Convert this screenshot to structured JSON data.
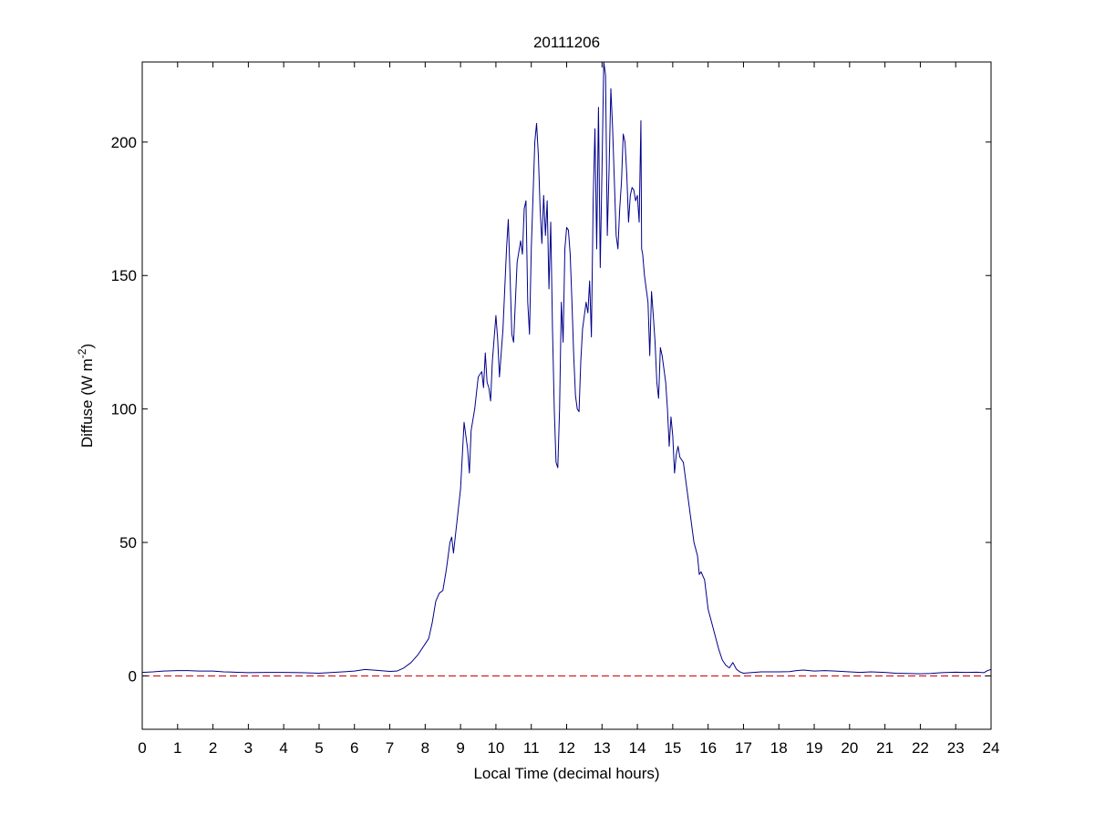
{
  "chart_data": {
    "type": "line",
    "title": "20111206",
    "xlabel": "Local Time (decimal hours)",
    "ylabel_parts": {
      "main": "Diffuse (W m",
      "exponent": "-2",
      "close": ")"
    },
    "xlim": [
      0,
      24
    ],
    "ylim": [
      -20,
      230
    ],
    "xticks": [
      0,
      1,
      2,
      3,
      4,
      5,
      6,
      7,
      8,
      9,
      10,
      11,
      12,
      13,
      14,
      15,
      16,
      17,
      18,
      19,
      20,
      21,
      22,
      23,
      24
    ],
    "yticks": [
      0,
      50,
      100,
      150,
      200
    ],
    "grid": false,
    "series": [
      {
        "color": "#00008b",
        "style": "solid",
        "points": [
          [
            0.0,
            1.3
          ],
          [
            0.3,
            1.5
          ],
          [
            0.6,
            1.8
          ],
          [
            1.0,
            2.0
          ],
          [
            1.3,
            2.0
          ],
          [
            1.6,
            1.8
          ],
          [
            2.0,
            1.8
          ],
          [
            2.3,
            1.5
          ],
          [
            2.6,
            1.4
          ],
          [
            3.0,
            1.2
          ],
          [
            3.5,
            1.3
          ],
          [
            4.0,
            1.3
          ],
          [
            4.5,
            1.2
          ],
          [
            5.0,
            1.0
          ],
          [
            5.5,
            1.4
          ],
          [
            6.0,
            1.8
          ],
          [
            6.3,
            2.4
          ],
          [
            6.6,
            2.1
          ],
          [
            7.0,
            1.7
          ],
          [
            7.2,
            1.8
          ],
          [
            7.4,
            3.0
          ],
          [
            7.6,
            5.0
          ],
          [
            7.8,
            8.0
          ],
          [
            8.0,
            12.0
          ],
          [
            8.1,
            14.0
          ],
          [
            8.2,
            20.0
          ],
          [
            8.3,
            28.0
          ],
          [
            8.4,
            31.0
          ],
          [
            8.5,
            32.0
          ],
          [
            8.6,
            40.0
          ],
          [
            8.7,
            50.0
          ],
          [
            8.75,
            52.0
          ],
          [
            8.8,
            46.0
          ],
          [
            8.9,
            58.0
          ],
          [
            9.0,
            70.0
          ],
          [
            9.1,
            95.0
          ],
          [
            9.2,
            85.0
          ],
          [
            9.25,
            76.0
          ],
          [
            9.3,
            92.0
          ],
          [
            9.4,
            100.0
          ],
          [
            9.5,
            112.0
          ],
          [
            9.6,
            114.0
          ],
          [
            9.65,
            108.0
          ],
          [
            9.7,
            121.0
          ],
          [
            9.75,
            110.0
          ],
          [
            9.8,
            108.0
          ],
          [
            9.85,
            103.0
          ],
          [
            9.9,
            118.0
          ],
          [
            10.0,
            135.0
          ],
          [
            10.05,
            126.0
          ],
          [
            10.1,
            112.0
          ],
          [
            10.2,
            130.0
          ],
          [
            10.3,
            160.0
          ],
          [
            10.35,
            171.0
          ],
          [
            10.4,
            150.0
          ],
          [
            10.45,
            128.0
          ],
          [
            10.5,
            125.0
          ],
          [
            10.6,
            155.0
          ],
          [
            10.7,
            163.0
          ],
          [
            10.75,
            158.0
          ],
          [
            10.8,
            175.0
          ],
          [
            10.85,
            178.0
          ],
          [
            10.9,
            140.0
          ],
          [
            10.95,
            128.0
          ],
          [
            11.0,
            160.0
          ],
          [
            11.1,
            200.0
          ],
          [
            11.15,
            207.0
          ],
          [
            11.2,
            195.0
          ],
          [
            11.25,
            175.0
          ],
          [
            11.3,
            162.0
          ],
          [
            11.35,
            180.0
          ],
          [
            11.4,
            165.0
          ],
          [
            11.45,
            178.0
          ],
          [
            11.5,
            145.0
          ],
          [
            11.55,
            170.0
          ],
          [
            11.6,
            130.0
          ],
          [
            11.65,
            100.0
          ],
          [
            11.7,
            80.0
          ],
          [
            11.75,
            78.0
          ],
          [
            11.8,
            100.0
          ],
          [
            11.85,
            140.0
          ],
          [
            11.9,
            125.0
          ],
          [
            11.95,
            160.0
          ],
          [
            12.0,
            168.0
          ],
          [
            12.05,
            167.0
          ],
          [
            12.1,
            158.0
          ],
          [
            12.15,
            140.0
          ],
          [
            12.2,
            120.0
          ],
          [
            12.25,
            105.0
          ],
          [
            12.3,
            100.0
          ],
          [
            12.35,
            99.0
          ],
          [
            12.4,
            118.0
          ],
          [
            12.45,
            130.0
          ],
          [
            12.5,
            135.0
          ],
          [
            12.55,
            140.0
          ],
          [
            12.6,
            136.0
          ],
          [
            12.65,
            148.0
          ],
          [
            12.7,
            127.0
          ],
          [
            12.75,
            178.0
          ],
          [
            12.8,
            205.0
          ],
          [
            12.85,
            160.0
          ],
          [
            12.9,
            213.0
          ],
          [
            12.95,
            153.0
          ],
          [
            13.0,
            190.0
          ],
          [
            13.05,
            230.0
          ],
          [
            13.1,
            225.0
          ],
          [
            13.15,
            165.0
          ],
          [
            13.2,
            190.0
          ],
          [
            13.25,
            220.0
          ],
          [
            13.3,
            205.0
          ],
          [
            13.35,
            185.0
          ],
          [
            13.4,
            165.0
          ],
          [
            13.45,
            160.0
          ],
          [
            13.5,
            175.0
          ],
          [
            13.55,
            185.0
          ],
          [
            13.6,
            203.0
          ],
          [
            13.65,
            200.0
          ],
          [
            13.7,
            188.0
          ],
          [
            13.75,
            170.0
          ],
          [
            13.8,
            180.0
          ],
          [
            13.85,
            183.0
          ],
          [
            13.9,
            182.0
          ],
          [
            13.95,
            178.0
          ],
          [
            14.0,
            180.0
          ],
          [
            14.05,
            170.0
          ],
          [
            14.1,
            208.0
          ],
          [
            14.12,
            160.0
          ],
          [
            14.15,
            158.0
          ],
          [
            14.2,
            150.0
          ],
          [
            14.3,
            140.0
          ],
          [
            14.35,
            120.0
          ],
          [
            14.4,
            144.0
          ],
          [
            14.45,
            135.0
          ],
          [
            14.5,
            125.0
          ],
          [
            14.55,
            110.0
          ],
          [
            14.6,
            104.0
          ],
          [
            14.65,
            123.0
          ],
          [
            14.7,
            120.0
          ],
          [
            14.75,
            115.0
          ],
          [
            14.8,
            110.0
          ],
          [
            14.85,
            100.0
          ],
          [
            14.9,
            86.0
          ],
          [
            14.95,
            97.0
          ],
          [
            15.0,
            90.0
          ],
          [
            15.05,
            76.0
          ],
          [
            15.1,
            83.0
          ],
          [
            15.15,
            86.0
          ],
          [
            15.2,
            82.0
          ],
          [
            15.3,
            80.0
          ],
          [
            15.4,
            70.0
          ],
          [
            15.5,
            60.0
          ],
          [
            15.6,
            50.0
          ],
          [
            15.7,
            45.0
          ],
          [
            15.75,
            38.0
          ],
          [
            15.8,
            39.0
          ],
          [
            15.9,
            36.0
          ],
          [
            16.0,
            25.0
          ],
          [
            16.1,
            20.0
          ],
          [
            16.2,
            15.0
          ],
          [
            16.3,
            10.0
          ],
          [
            16.4,
            6.0
          ],
          [
            16.5,
            4.0
          ],
          [
            16.6,
            3.0
          ],
          [
            16.7,
            5.0
          ],
          [
            16.8,
            2.5
          ],
          [
            16.9,
            1.5
          ],
          [
            17.0,
            1.0
          ],
          [
            17.2,
            1.2
          ],
          [
            17.5,
            1.5
          ],
          [
            18.0,
            1.5
          ],
          [
            18.3,
            1.6
          ],
          [
            18.5,
            2.0
          ],
          [
            18.7,
            2.2
          ],
          [
            19.0,
            1.8
          ],
          [
            19.3,
            2.0
          ],
          [
            19.6,
            1.8
          ],
          [
            20.0,
            1.5
          ],
          [
            20.3,
            1.3
          ],
          [
            20.6,
            1.5
          ],
          [
            21.0,
            1.3
          ],
          [
            21.3,
            1.0
          ],
          [
            21.6,
            0.9
          ],
          [
            22.0,
            0.8
          ],
          [
            22.3,
            0.9
          ],
          [
            22.6,
            1.2
          ],
          [
            23.0,
            1.4
          ],
          [
            23.3,
            1.3
          ],
          [
            23.6,
            1.4
          ],
          [
            23.8,
            1.2
          ],
          [
            23.9,
            2.0
          ],
          [
            24.0,
            2.4
          ]
        ]
      },
      {
        "color": "#cc0000",
        "style": "dashed",
        "points": [
          [
            0,
            0
          ],
          [
            24,
            0
          ]
        ]
      }
    ]
  }
}
